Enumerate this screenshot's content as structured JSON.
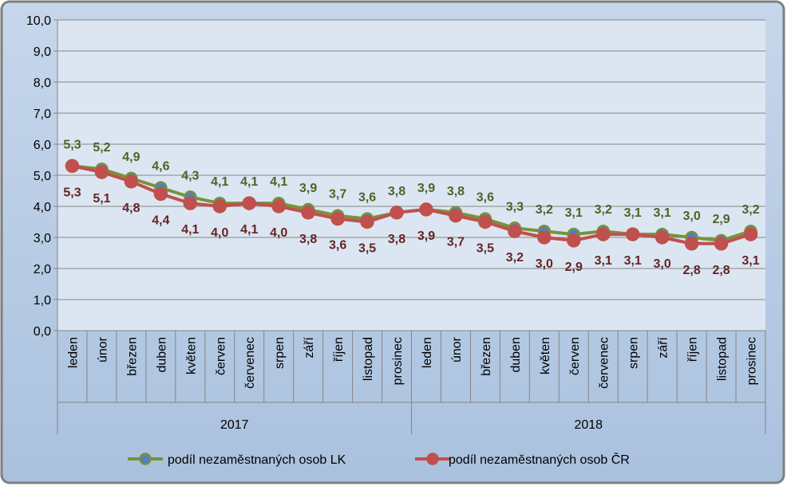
{
  "chart_data": {
    "type": "line",
    "title": "",
    "xlabel": "",
    "ylabel": "",
    "ylim": [
      0,
      10
    ],
    "yticks": [
      "0,0",
      "1,0",
      "2,0",
      "3,0",
      "4,0",
      "5,0",
      "6,0",
      "7,0",
      "8,0",
      "9,0",
      "10,0"
    ],
    "grid": true,
    "legend_position": "bottom",
    "years": [
      {
        "label": "2017",
        "months": 12
      },
      {
        "label": "2018",
        "months": 12
      }
    ],
    "categories": [
      "leden",
      "únor",
      "březen",
      "duben",
      "květen",
      "červen",
      "červenec",
      "srpen",
      "září",
      "říjen",
      "listopad",
      "prosinec",
      "leden",
      "únor",
      "březen",
      "duben",
      "květen",
      "červen",
      "červenec",
      "srpen",
      "září",
      "říjen",
      "listopad",
      "prosinec"
    ],
    "series": [
      {
        "name": "podíl nezaměstnaných osob LK",
        "color": "#77933c",
        "marker_color": "#4f81bd",
        "label_color": "#4f6228",
        "values": [
          5.3,
          5.2,
          4.9,
          4.6,
          4.3,
          4.1,
          4.1,
          4.1,
          3.9,
          3.7,
          3.6,
          3.8,
          3.9,
          3.8,
          3.6,
          3.3,
          3.2,
          3.1,
          3.2,
          3.1,
          3.1,
          3.0,
          2.9,
          3.2
        ],
        "labels": [
          "5,3",
          "5,2",
          "4,9",
          "4,6",
          "4,3",
          "4,1",
          "4,1",
          "4,1",
          "3,9",
          "3,7",
          "3,6",
          "3,8",
          "3,9",
          "3,8",
          "3,6",
          "3,3",
          "3,2",
          "3,1",
          "3,2",
          "3,1",
          "3,1",
          "3,0",
          "2,9",
          "3,2"
        ]
      },
      {
        "name": "podíl nezaměstnaných osob ČR",
        "color": "#c0504d",
        "marker_color": "#c0504d",
        "label_color": "#632523",
        "values": [
          5.3,
          5.1,
          4.8,
          4.4,
          4.1,
          4.0,
          4.1,
          4.0,
          3.8,
          3.6,
          3.5,
          3.8,
          3.9,
          3.7,
          3.5,
          3.2,
          3.0,
          2.9,
          3.1,
          3.1,
          3.0,
          2.8,
          2.8,
          3.1
        ],
        "labels": [
          "5,3",
          "5,1",
          "4,8",
          "4,4",
          "4,1",
          "4,0",
          "4,1",
          "4,0",
          "3,8",
          "3,6",
          "3,5",
          "3,8",
          "3,9",
          "3,7",
          "3,5",
          "3,2",
          "3,0",
          "2,9",
          "3,1",
          "3,1",
          "3,0",
          "2,8",
          "2,8",
          "3,1"
        ]
      }
    ],
    "colors": {
      "frame_fill": "#b9cde5",
      "frame_border": "#7f7f7f",
      "plot_fill": "#dce6f2",
      "grid": "#868686"
    }
  }
}
